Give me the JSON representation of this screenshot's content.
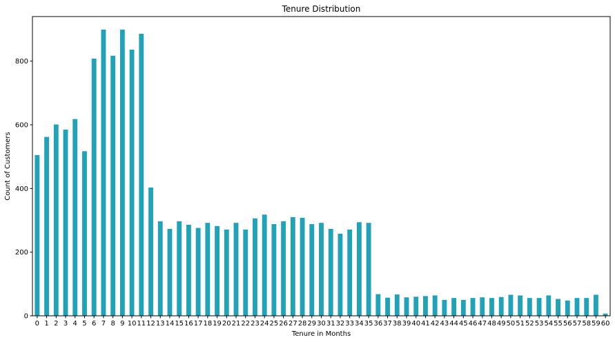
{
  "chart_data": {
    "type": "bar",
    "title": "Tenure Distribution",
    "xlabel": "Tenure in Months",
    "ylabel": "Count of Customers",
    "categories": [
      "0",
      "1",
      "2",
      "3",
      "4",
      "5",
      "6",
      "7",
      "8",
      "9",
      "10",
      "11",
      "12",
      "13",
      "14",
      "15",
      "16",
      "17",
      "18",
      "19",
      "20",
      "21",
      "22",
      "23",
      "24",
      "25",
      "26",
      "27",
      "28",
      "29",
      "30",
      "31",
      "32",
      "33",
      "34",
      "35",
      "36",
      "37",
      "38",
      "39",
      "40",
      "41",
      "42",
      "43",
      "44",
      "45",
      "46",
      "47",
      "48",
      "49",
      "50",
      "51",
      "52",
      "53",
      "54",
      "55",
      "56",
      "57",
      "58",
      "59",
      "60"
    ],
    "values": [
      505,
      562,
      601,
      585,
      618,
      517,
      808,
      899,
      817,
      899,
      836,
      886,
      403,
      297,
      273,
      297,
      286,
      276,
      292,
      282,
      271,
      292,
      271,
      306,
      318,
      288,
      297,
      310,
      308,
      288,
      292,
      273,
      258,
      271,
      294,
      292,
      68,
      57,
      67,
      58,
      60,
      62,
      64,
      50,
      56,
      50,
      56,
      58,
      56,
      59,
      66,
      64,
      56,
      56,
      64,
      53,
      48,
      56,
      56,
      66,
      7
    ],
    "ylim": [
      0,
      940
    ],
    "yticks": [
      0,
      200,
      400,
      600,
      800
    ],
    "bar_color": "#22a2b8",
    "grid": false,
    "legend": "none"
  }
}
